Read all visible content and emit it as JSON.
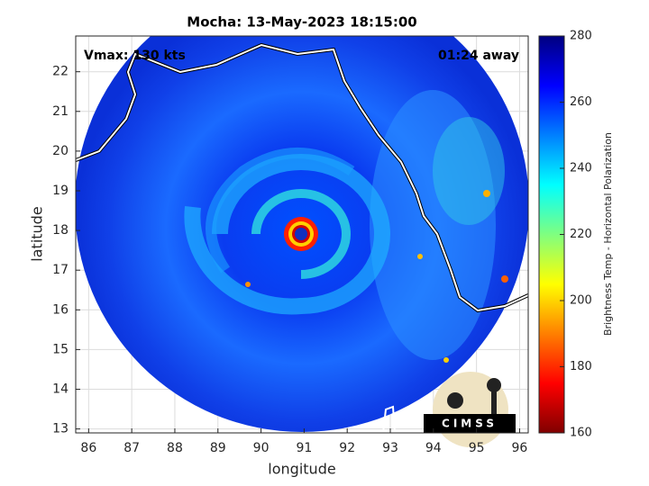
{
  "chart_data": {
    "type": "image",
    "title": "Mocha: 13-May-2023 18:15:00",
    "annotations": [
      "Vmax: 130 kts",
      "01:24 away"
    ],
    "xlabel": "longitude",
    "ylabel": "latitude",
    "xlim": [
      85.7,
      96.2
    ],
    "ylim": [
      12.9,
      22.9
    ],
    "xticks": [
      86,
      87,
      88,
      89,
      90,
      91,
      92,
      93,
      94,
      95,
      96
    ],
    "yticks": [
      13,
      14,
      15,
      16,
      17,
      18,
      19,
      20,
      21,
      22
    ],
    "grid": true,
    "colorbar": {
      "label": "Brightness Temp - Horizontal Polarization",
      "lim": [
        160,
        280
      ],
      "ticks": [
        160,
        180,
        200,
        220,
        240,
        260,
        280
      ]
    },
    "logo": "CIMSS"
  }
}
